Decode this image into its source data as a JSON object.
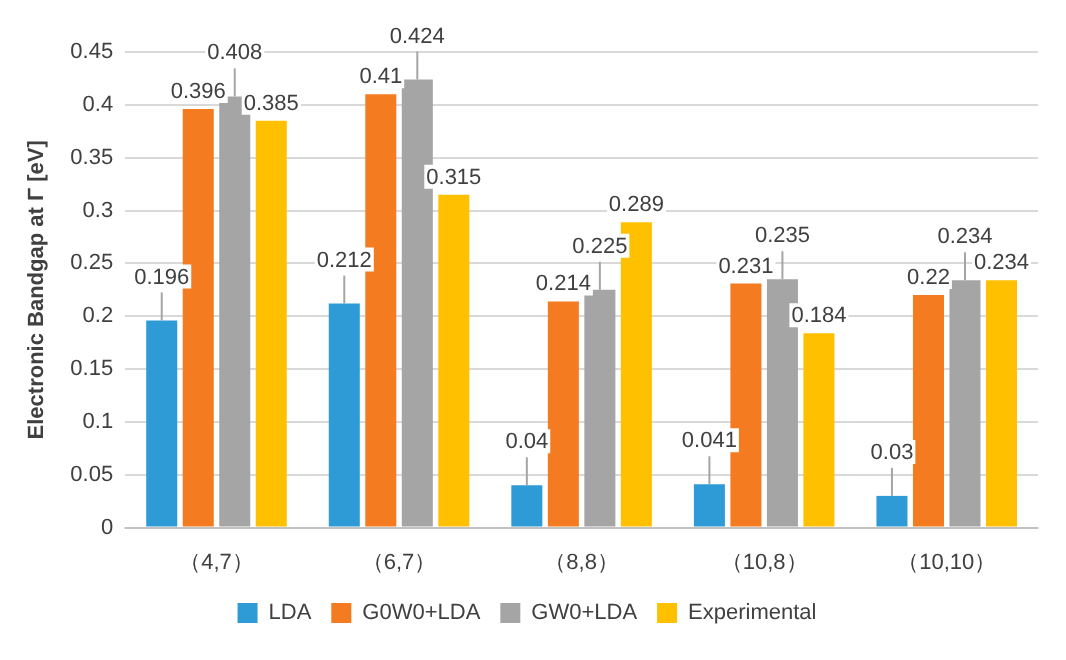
{
  "chart_data": {
    "type": "bar",
    "ylabel": "Electronic Bandgap at Γ [eV]",
    "categories": [
      "（4,7）",
      "（6,7）",
      "（8,8）",
      "（10,8）",
      "（10,10）"
    ],
    "series": [
      {
        "name": "LDA",
        "color": "#2e9bd6",
        "values": [
          0.196,
          0.212,
          0.04,
          0.041,
          0.03
        ]
      },
      {
        "name": "G0W0+LDA",
        "color": "#f47b20",
        "values": [
          0.396,
          0.41,
          0.214,
          0.231,
          0.22
        ]
      },
      {
        "name": "GW0+LDA",
        "color": "#a5a5a5",
        "values": [
          0.408,
          0.424,
          0.225,
          0.235,
          0.234
        ]
      },
      {
        "name": "Experimental",
        "color": "#ffc000",
        "values": [
          0.385,
          0.315,
          0.289,
          0.184,
          0.234
        ]
      }
    ],
    "ylim": [
      0,
      0.45
    ],
    "yticks": [
      0,
      0.05,
      0.1,
      0.15,
      0.2,
      0.25,
      0.3,
      0.35,
      0.4,
      0.45
    ],
    "grid": "y",
    "legend": "bottom",
    "data_labels": true
  }
}
